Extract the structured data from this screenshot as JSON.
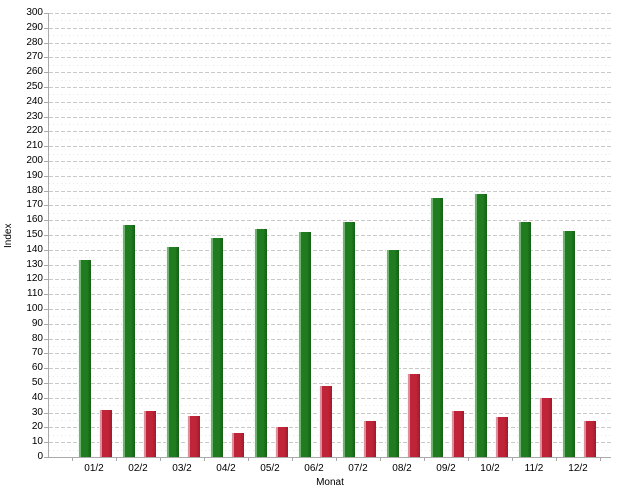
{
  "chart_data": {
    "type": "bar",
    "title": "",
    "xlabel": "Monat",
    "ylabel": "Index",
    "categories": [
      "01/2",
      "02/2",
      "03/2",
      "04/2",
      "05/2",
      "06/2",
      "07/2",
      "08/2",
      "09/2",
      "10/2",
      "11/2",
      "12/2"
    ],
    "series": [
      {
        "name": "green-series",
        "color": "#1f7d1f",
        "values": [
          133,
          157,
          142,
          148,
          154,
          152,
          159,
          140,
          175,
          178,
          159,
          153
        ]
      },
      {
        "name": "red-series",
        "color": "#c02438",
        "values": [
          32,
          31,
          28,
          16,
          20,
          48,
          24,
          56,
          31,
          27,
          40,
          24
        ]
      }
    ],
    "ylim": [
      0,
      300
    ],
    "yticks": [
      0,
      10,
      20,
      30,
      40,
      50,
      60,
      70,
      80,
      90,
      100,
      110,
      120,
      130,
      140,
      150,
      160,
      170,
      180,
      190,
      200,
      210,
      220,
      230,
      240,
      250,
      260,
      270,
      280,
      290,
      300
    ],
    "ytick_step": 10,
    "minor_ytick_step": 5,
    "grid": "horizontal dashed major lines every 10, faint dotted minor lines every 5",
    "legend": "none",
    "colors": {
      "green_bar": "#1f7d1f",
      "green_bar_highlight": "#74b274",
      "red_bar": "#c02438",
      "red_bar_highlight": "#d9919d",
      "gridline_major": "#c9c9c9",
      "gridline_minor": "#e7e7e7",
      "axis": "#a9a9a9",
      "background": "#ffffff"
    }
  }
}
